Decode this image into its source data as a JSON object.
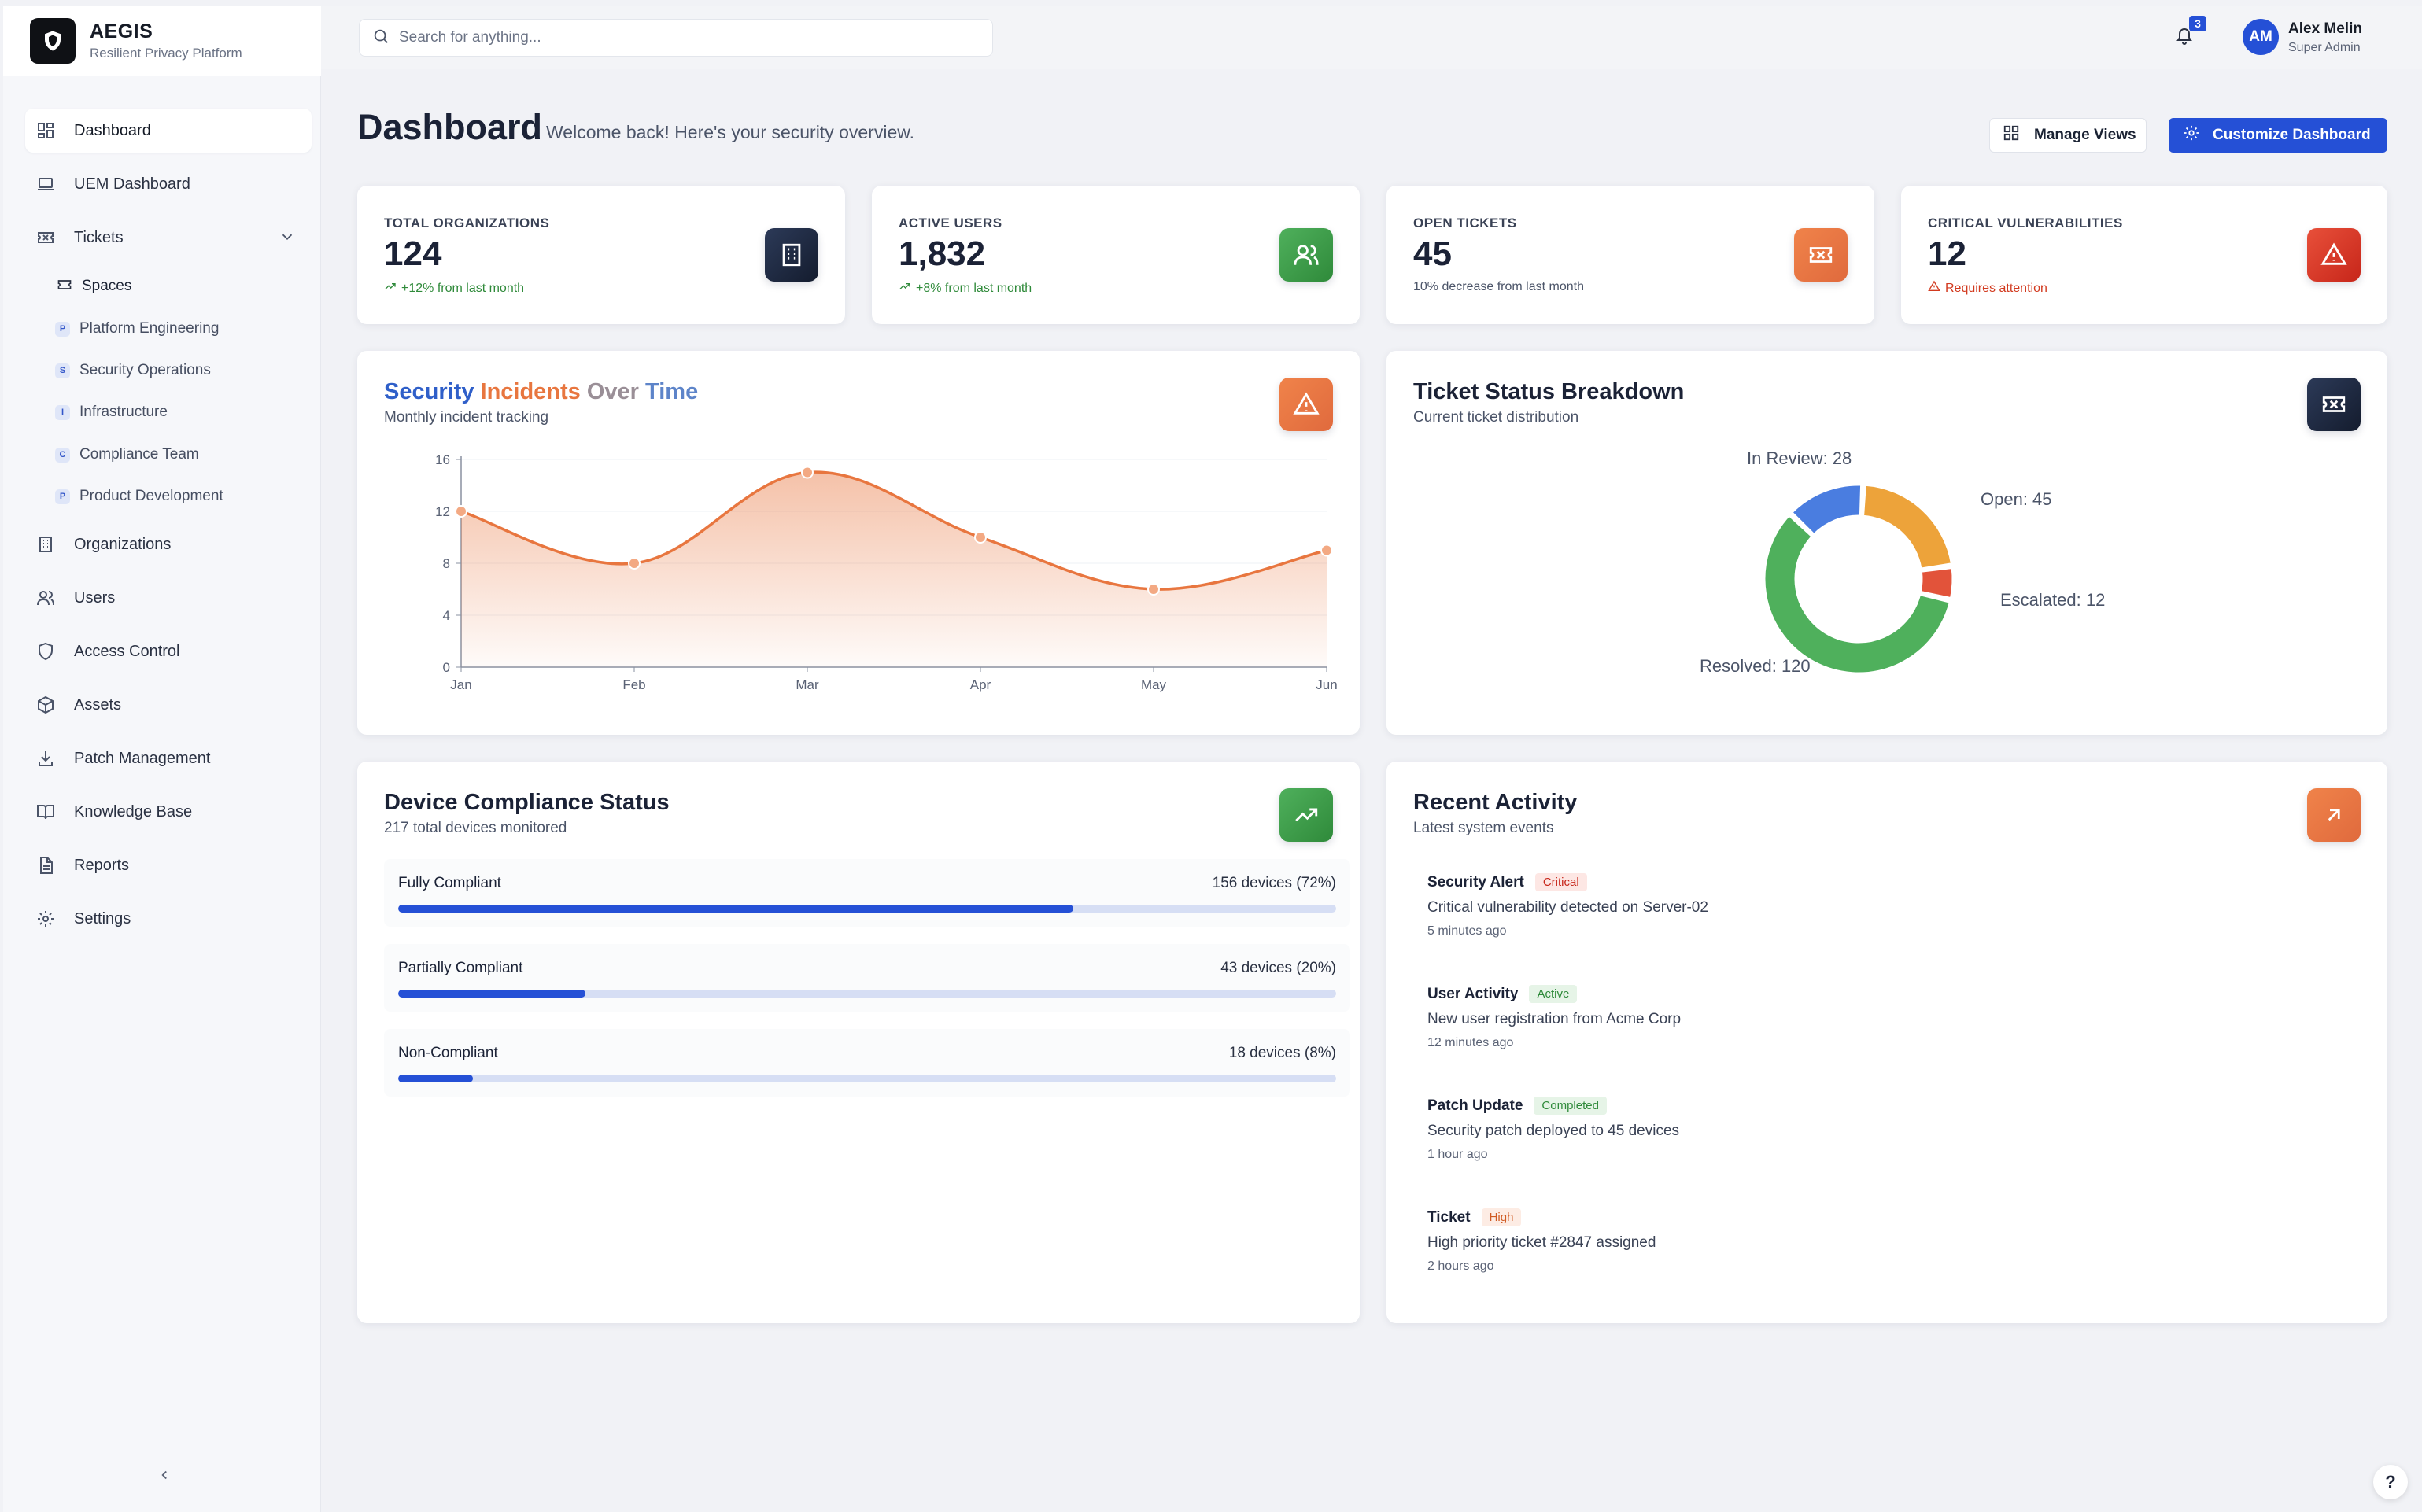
{
  "brand": {
    "name": "AEGIS",
    "tagline": "Resilient Privacy Platform"
  },
  "sidebar": {
    "items": [
      {
        "label": "Dashboard",
        "icon": "dashboard-icon",
        "active": true
      },
      {
        "label": "UEM Dashboard",
        "icon": "laptop-icon"
      },
      {
        "label": "Tickets",
        "icon": "ticket-icon",
        "expanded": true
      },
      {
        "label": "Organizations",
        "icon": "building-icon"
      },
      {
        "label": "Users",
        "icon": "users-icon"
      },
      {
        "label": "Access Control",
        "icon": "shield-icon"
      },
      {
        "label": "Assets",
        "icon": "box-icon"
      },
      {
        "label": "Patch Management",
        "icon": "download-icon"
      },
      {
        "label": "Knowledge Base",
        "icon": "book-icon"
      },
      {
        "label": "Reports",
        "icon": "report-icon"
      },
      {
        "label": "Settings",
        "icon": "gear-icon"
      }
    ],
    "spaces_label": "Spaces",
    "spaces": [
      {
        "letter": "P",
        "label": "Platform Engineering"
      },
      {
        "letter": "S",
        "label": "Security Operations"
      },
      {
        "letter": "I",
        "label": "Infrastructure"
      },
      {
        "letter": "C",
        "label": "Compliance Team"
      },
      {
        "letter": "P",
        "label": "Product Development"
      }
    ]
  },
  "topbar": {
    "search_placeholder": "Search for anything...",
    "notification_count": "3",
    "user": {
      "initials": "AM",
      "name": "Alex Melin",
      "role": "Super Admin"
    }
  },
  "header": {
    "title": "Dashboard",
    "subtitle": "Welcome back! Here's your security overview.",
    "manage_views": "Manage Views",
    "customize": "Customize Dashboard"
  },
  "stats": [
    {
      "label": "TOTAL ORGANIZATIONS",
      "value": "124",
      "note": "+12% from last month",
      "tone": "green",
      "icon": "building-icon"
    },
    {
      "label": "ACTIVE USERS",
      "value": "1,832",
      "note": "+8% from last month",
      "tone": "green",
      "icon": "users-icon"
    },
    {
      "label": "OPEN TICKETS",
      "value": "45",
      "note": "10% decrease from last month",
      "tone": "gray",
      "icon": "ticket-icon"
    },
    {
      "label": "CRITICAL VULNERABILITIES",
      "value": "12",
      "note": "Requires attention",
      "tone": "red",
      "icon": "alert-triangle-icon"
    }
  ],
  "incidents": {
    "title_parts": [
      "Security",
      " Incidents",
      " Over",
      " Time"
    ],
    "subtitle": "Monthly incident tracking"
  },
  "tickets_breakdown": {
    "title": "Ticket Status Breakdown",
    "subtitle": "Current ticket distribution"
  },
  "compliance": {
    "title": "Device Compliance Status",
    "subtitle": "217 total devices monitored",
    "rows": [
      {
        "name": "Fully Compliant",
        "count": "156 devices (72%)",
        "percent": 72
      },
      {
        "name": "Partially Compliant",
        "count": "43 devices (20%)",
        "percent": 20
      },
      {
        "name": "Non-Compliant",
        "count": "18 devices (8%)",
        "percent": 8
      }
    ]
  },
  "activity": {
    "title": "Recent Activity",
    "subtitle": "Latest system events",
    "items": [
      {
        "title": "Security Alert",
        "badge": "Critical",
        "desc": "Critical vulnerability detected on Server-02",
        "time": "5 minutes ago"
      },
      {
        "title": "User Activity",
        "badge": "Active",
        "desc": "New user registration from Acme Corp",
        "time": "12 minutes ago"
      },
      {
        "title": "Patch Update",
        "badge": "Completed",
        "desc": "Security patch deployed to 45 devices",
        "time": "1 hour ago"
      },
      {
        "title": "Ticket",
        "badge": "High",
        "desc": "High priority ticket #2847 assigned",
        "time": "2 hours ago"
      }
    ]
  },
  "colors": {
    "accent": "#2550d6",
    "line": "#e8763f",
    "resolved": "#4fb05c",
    "open": "#eda33a",
    "escalated": "#e2533a",
    "in_review": "#4a7de0"
  },
  "chart_data": [
    {
      "type": "area",
      "categories": [
        "Jan",
        "Feb",
        "Mar",
        "Apr",
        "May",
        "Jun"
      ],
      "values": [
        12,
        8,
        15,
        10,
        6,
        9
      ],
      "ylim": [
        0,
        16
      ],
      "yticks": [
        0,
        4,
        8,
        12,
        16
      ],
      "grid": true
    },
    {
      "type": "pie",
      "labels": [
        "Open",
        "Escalated",
        "Resolved",
        "In Review"
      ],
      "values": [
        45,
        12,
        120,
        28
      ],
      "data_labels": [
        "Open: 45",
        "Escalated: 12",
        "Resolved: 120",
        "In Review: 28"
      ]
    }
  ]
}
